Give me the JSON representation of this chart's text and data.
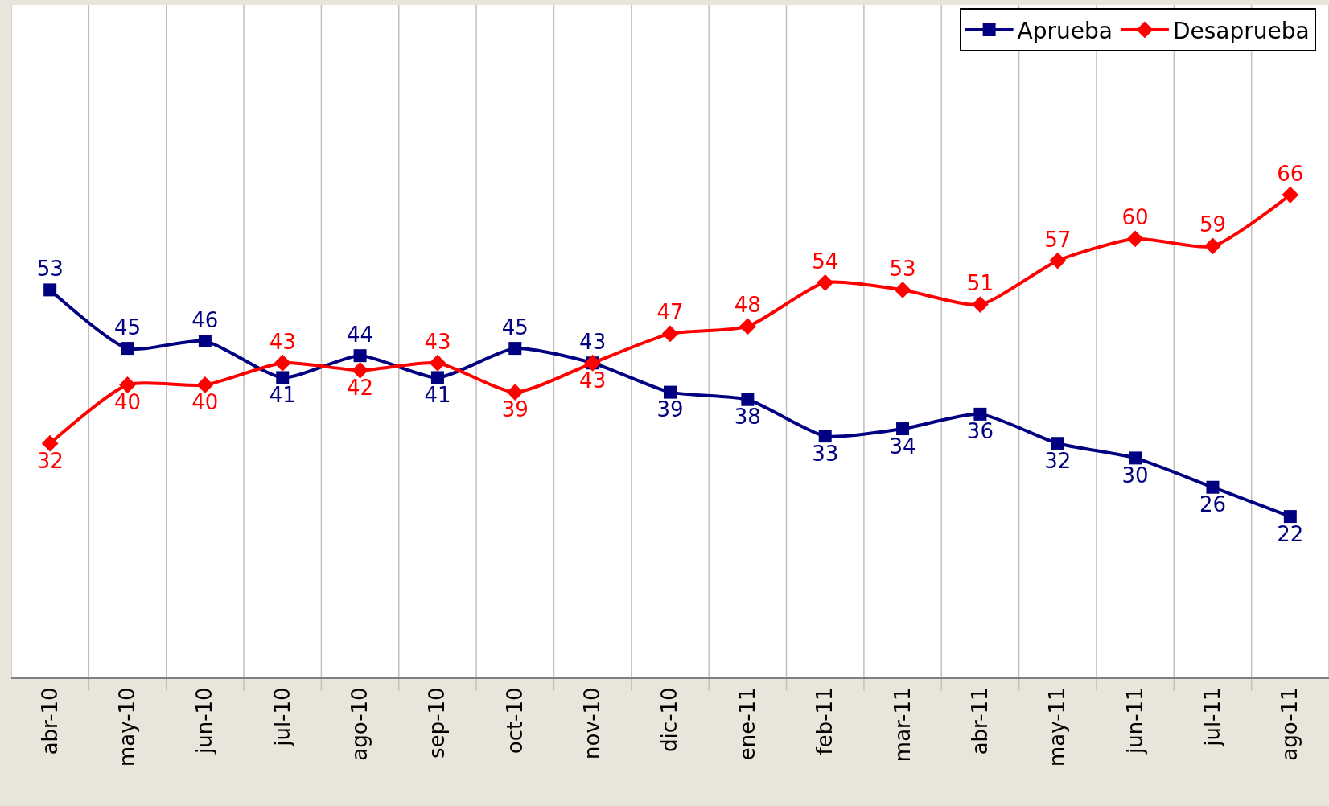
{
  "chart_data": {
    "type": "line",
    "categories": [
      "abr-10",
      "may-10",
      "jun-10",
      "jul-10",
      "ago-10",
      "sep-10",
      "oct-10",
      "nov-10",
      "dic-10",
      "ene-11",
      "feb-11",
      "mar-11",
      "abr-11",
      "may-11",
      "jun-11",
      "jul-11",
      "ago-11"
    ],
    "series": [
      {
        "name": "Aprueba",
        "color": "#000080",
        "marker": "square",
        "values": [
          53,
          45,
          46,
          41,
          44,
          41,
          45,
          43,
          39,
          38,
          33,
          34,
          36,
          32,
          30,
          26,
          22
        ]
      },
      {
        "name": "Desaprueba",
        "color": "#ff0000",
        "marker": "diamond",
        "values": [
          32,
          40,
          40,
          43,
          42,
          43,
          39,
          43,
          47,
          48,
          54,
          53,
          51,
          57,
          60,
          59,
          66
        ]
      }
    ],
    "ylim": [
      0,
      92
    ],
    "tick_labels": "x",
    "grid": "x",
    "legend": "top right",
    "data_labels": true,
    "line_style": "solid"
  }
}
